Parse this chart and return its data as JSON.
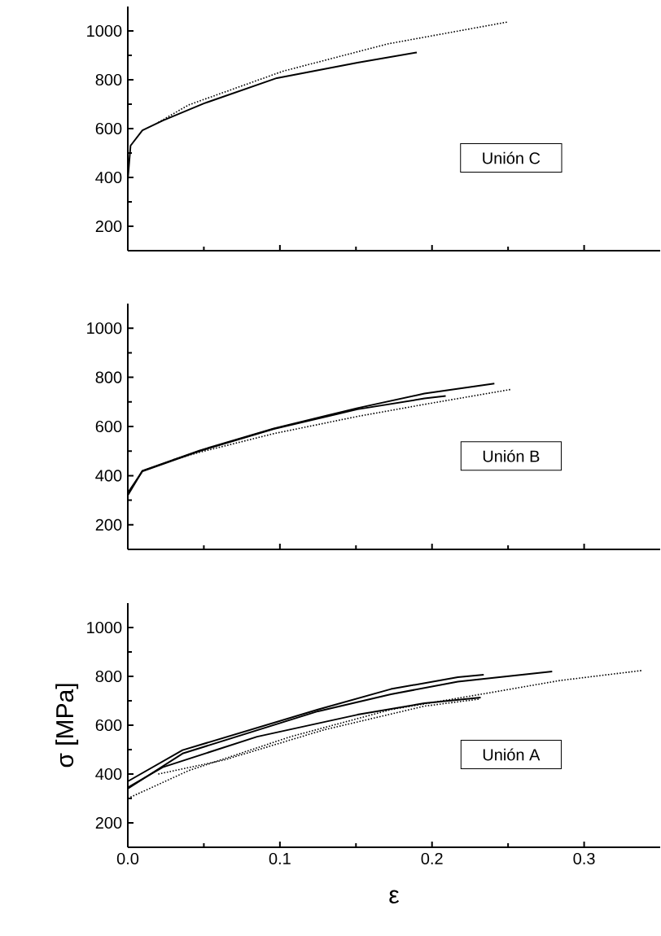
{
  "chart_data": [
    {
      "type": "line",
      "xlim": [
        0,
        0.35
      ],
      "ylim": [
        100,
        1100
      ],
      "yticks": [
        200,
        400,
        600,
        800,
        1000
      ],
      "tick_labels": "y",
      "marker": "none",
      "annotations": [
        "Unión C"
      ],
      "series": [
        {
          "color": "#000000",
          "line_style": "solid",
          "x": [
            0,
            0.0018,
            0.0096,
            0.023,
            0.05,
            0.098,
            0.151,
            0.19
          ],
          "values": [
            390,
            530,
            593,
            633,
            703,
            807,
            870,
            912
          ]
        },
        {
          "color": "#000000",
          "line_style": "dotted",
          "x": [
            0.02,
            0.04,
            0.102,
            0.171,
            0.25
          ],
          "values": [
            625,
            697,
            835,
            947,
            1037
          ]
        }
      ]
    },
    {
      "type": "line",
      "xlim": [
        0,
        0.35
      ],
      "ylim": [
        100,
        1100
      ],
      "yticks": [
        200,
        400,
        600,
        800,
        1000
      ],
      "tick_labels": "y",
      "marker": "none",
      "annotations": [
        "Unión B"
      ],
      "series": [
        {
          "color": "#000000",
          "line_style": "solid",
          "x": [
            0,
            0.0096,
            0.047,
            0.096,
            0.151,
            0.195,
            0.241
          ],
          "values": [
            320,
            420,
            502,
            592,
            675,
            734,
            775
          ]
        },
        {
          "color": "#000000",
          "line_style": "solid",
          "x": [
            0,
            0.0096,
            0.047,
            0.096,
            0.151,
            0.195,
            0.209
          ],
          "values": [
            330,
            418,
            500,
            590,
            670,
            714,
            724
          ]
        },
        {
          "color": "#000000",
          "line_style": "dotted",
          "x": [
            0.03,
            0.047,
            0.096,
            0.151,
            0.195,
            0.252
          ],
          "values": [
            465,
            495,
            571,
            641,
            690,
            751
          ]
        }
      ]
    },
    {
      "type": "line",
      "xlim": [
        0,
        0.35
      ],
      "ylim": [
        100,
        1100
      ],
      "yticks": [
        200,
        400,
        600,
        800,
        1000
      ],
      "xticks": [
        {
          "value": 0,
          "label": "0.0"
        },
        0.1,
        0.2,
        0.3
      ],
      "xlabel": "ε",
      "ylabel": "σ [MPa]",
      "marker": "none",
      "annotations": [
        "Unión A"
      ],
      "series": [
        {
          "color": "#000000",
          "line_style": "solid",
          "x": [
            0,
            0.036,
            0.125,
            0.173,
            0.217,
            0.234
          ],
          "values": [
            370,
            498,
            664,
            748,
            797,
            807
          ]
        },
        {
          "color": "#000000",
          "line_style": "solid",
          "x": [
            0,
            0.036,
            0.125,
            0.173,
            0.217,
            0.279
          ],
          "values": [
            340,
            484,
            657,
            727,
            778,
            820
          ]
        },
        {
          "color": "#000000",
          "line_style": "solid",
          "x": [
            0,
            0.023,
            0.085,
            0.151,
            0.195,
            0.232
          ],
          "values": [
            345,
            428,
            553,
            643,
            690,
            713
          ]
        },
        {
          "color": "#000000",
          "line_style": "dotted",
          "x": [
            0,
            0.04,
            0.107,
            0.173,
            0.239,
            0.284,
            0.338
          ],
          "values": [
            300,
            414,
            553,
            664,
            734,
            783,
            824
          ]
        },
        {
          "color": "#000000",
          "line_style": "dotted",
          "x": [
            0.02,
            0.063,
            0.129,
            0.195,
            0.231
          ],
          "values": [
            400,
            457,
            581,
            678,
            707
          ]
        }
      ]
    }
  ]
}
